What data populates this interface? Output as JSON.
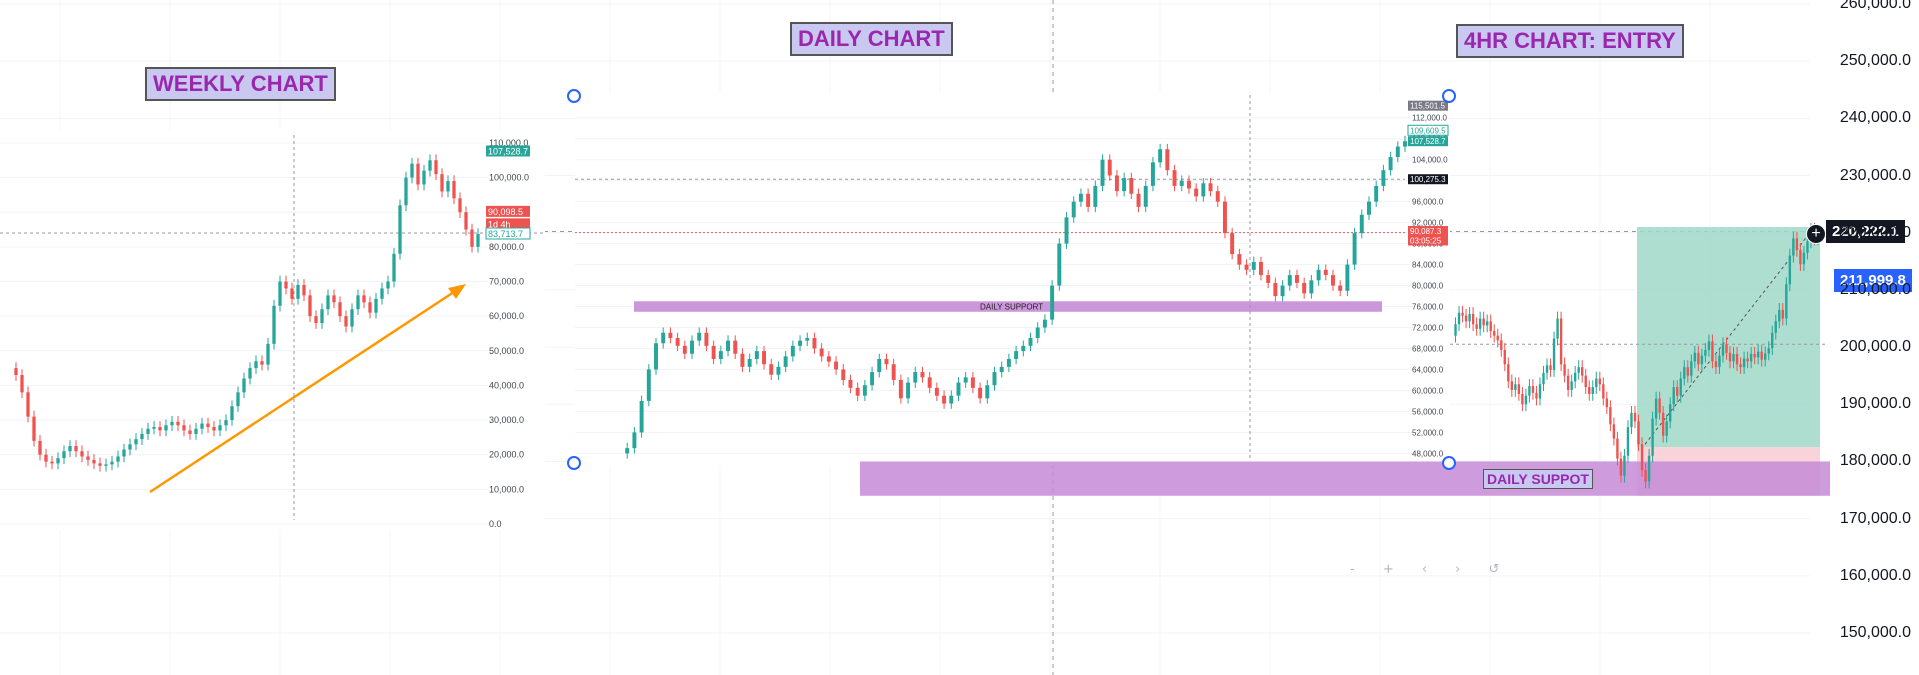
{
  "titles": {
    "weekly": "WEEKLY CHART",
    "daily": "DAILY CHART",
    "fourhr": "4HR CHART: ENTRY"
  },
  "support_labels": {
    "daily_inset": "DAILY SUPPORT",
    "fourhr": "DAILY SUPPOT"
  },
  "price_badges": {
    "current": "220,222.1",
    "target": "211,999.8"
  },
  "colors": {
    "up": "#26a69a",
    "down": "#ef5350",
    "support_band": "#c58bd6",
    "target_zone": "#9fd8c8",
    "stop_zone": "#f7cfd6",
    "arrow": "#ff9800",
    "title_bg": "#c8c8f0",
    "title_text": "#9b27af",
    "badge_dark": "#131722",
    "badge_blue": "#2962ff"
  },
  "zoom_controls": "- + ‹ › ↺",
  "chart_data": [
    {
      "type": "line",
      "panel": "main 4HR chart",
      "ylabel": "",
      "y_ticks": [
        "260,000.0",
        "250,000.0",
        "240,000.0",
        "230,000.0",
        "220,000.0",
        "210,000.0",
        "200,000.0",
        "190,000.0",
        "180,000.0",
        "170,000.0",
        "160,000.0",
        "150,000.0"
      ],
      "ylim": [
        147000,
        260000
      ],
      "series": [
        {
          "values": [
            202000,
            204000,
            206000,
            205500,
            204500,
            205800,
            204000,
            203200,
            205000,
            203800,
            204500,
            202800,
            202000,
            201200,
            199500,
            197000,
            194000,
            192500,
            193500,
            191800,
            190000,
            191500,
            193200,
            192000,
            191000,
            193500,
            195500,
            196800,
            196000,
            201500,
            205000,
            197000,
            195000,
            192500,
            194000,
            195500,
            196500,
            195000,
            193000,
            191800,
            193000,
            194500,
            193500,
            191000,
            189500,
            186500,
            184000,
            180500,
            177500,
            181000,
            186000,
            188500,
            187000,
            183000,
            178500,
            176500,
            181000,
            187500,
            191000,
            188500,
            184500,
            187000,
            190000,
            193000,
            191500,
            194500,
            196500,
            195000,
            197500,
            199000,
            197000,
            198500,
            199500,
            201000,
            197500,
            196500,
            198500,
            200500,
            199000,
            197500,
            198800,
            197000,
            196500,
            198000,
            197500,
            198800,
            198200,
            199200,
            197800,
            198900,
            199800,
            202500,
            204500,
            206500,
            205000,
            211000,
            216000,
            219000,
            217000,
            214500,
            216500,
            218500,
            220500,
            219000,
            220200
          ]
        }
      ],
      "annotations": {
        "current_price": 220222.1,
        "target_price": 211999.8,
        "support_range": [
          174000,
          180000
        ],
        "long_position": {
          "entry": 182500,
          "take_profit": 221000,
          "stop": 174000
        }
      }
    },
    {
      "type": "line",
      "panel": "weekly inset",
      "y_ticks": [
        "110,000.0",
        "100,000.0",
        "90,000.0",
        "80,000.0",
        "70,000.0",
        "60,000.0",
        "50,000.0",
        "40,000.0",
        "30,000.0",
        "20,000.0",
        "10,000.0",
        "0.0"
      ],
      "ylim": [
        0,
        112000
      ],
      "series": [
        {
          "values": [
            45000,
            43000,
            38000,
            31000,
            24000,
            20000,
            18000,
            17500,
            19000,
            21000,
            22500,
            21000,
            19500,
            18500,
            17500,
            16800,
            17200,
            18000,
            19500,
            21500,
            23000,
            24500,
            26000,
            27500,
            28000,
            27000,
            28500,
            29500,
            28500,
            27000,
            26000,
            27500,
            29000,
            28000,
            27000,
            28500,
            30000,
            34000,
            38000,
            42000,
            45000,
            47000,
            46000,
            52000,
            63000,
            70000,
            68000,
            65000,
            69000,
            66000,
            60000,
            58000,
            62000,
            66000,
            64000,
            60000,
            57000,
            62000,
            66000,
            64000,
            61000,
            65000,
            68000,
            70000,
            78000,
            92000,
            100000,
            104000,
            98000,
            102000,
            105000,
            101000,
            96000,
            99000,
            94000,
            90000,
            85000,
            80000,
            83700
          ]
        }
      ],
      "annotations": {
        "price_labels": [
          "107,528.7",
          "90,098.5",
          "1d 4h",
          "83,713.7"
        ]
      }
    },
    {
      "type": "line",
      "panel": "daily inset",
      "y_ticks": [
        "112,000.0",
        "108,000.0",
        "104,000.0",
        "100,000.0",
        "96,000.0",
        "92,000.0",
        "88,000.0",
        "84,000.0",
        "80,000.0",
        "76,000.0",
        "72,000.0",
        "68,000.0",
        "64,000.0",
        "60,000.0",
        "56,000.0",
        "52,000.0",
        "48,000.0"
      ],
      "ylim": [
        47500,
        115000
      ],
      "series": [
        {
          "values": [
            48000,
            49000,
            52000,
            58000,
            64000,
            69000,
            71000,
            70000,
            68500,
            67000,
            69500,
            71000,
            68500,
            66000,
            67500,
            69500,
            67000,
            64500,
            66000,
            67500,
            65000,
            63000,
            64500,
            66500,
            68500,
            69500,
            70000,
            68000,
            66500,
            65500,
            64000,
            62000,
            60500,
            59000,
            61000,
            63500,
            66000,
            65000,
            62000,
            58500,
            61500,
            63500,
            62500,
            60500,
            59000,
            57500,
            59000,
            61500,
            62500,
            60500,
            58500,
            61000,
            63500,
            64500,
            66000,
            67500,
            68500,
            70000,
            72000,
            73500,
            80000,
            88000,
            93000,
            96000,
            97500,
            95000,
            99000,
            104000,
            101000,
            98000,
            100500,
            97500,
            95000,
            99000,
            103500,
            106000,
            102000,
            99000,
            100000,
            98500,
            97000,
            99500,
            98000,
            96000,
            90000,
            86000,
            84000,
            83000,
            84500,
            82000,
            80500,
            78000,
            80000,
            82000,
            80500,
            78500,
            81000,
            83000,
            82000,
            80000,
            79000,
            84000,
            90000,
            93500,
            96000,
            99000,
            102000,
            104500,
            106500,
            107528.7
          ]
        }
      ],
      "annotations": {
        "daily_support_band": [
          75000,
          77000
        ],
        "price_labels": [
          "115,501.5",
          "109,609.5",
          "107,528.7",
          "100,275.3",
          "90,087.3",
          "03:05:25"
        ]
      }
    }
  ]
}
